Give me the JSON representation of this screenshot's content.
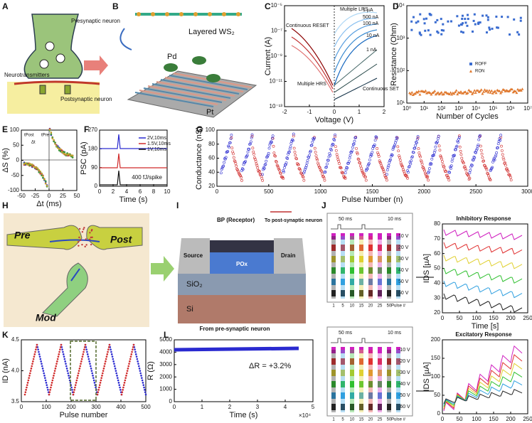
{
  "panels": {
    "A": {
      "label": "A",
      "presynaptic": "Presynaptic neuron",
      "neurotransmitters": "Neurotransmitters",
      "postsynaptic": "Postsynaptic neuron"
    },
    "B": {
      "label": "B",
      "material": "Layered WS₂",
      "top": "Pd",
      "bottom": "Pt"
    },
    "C": {
      "label": "C",
      "xlabel": "Voltage (V)",
      "ylabel": "Current (A)",
      "xticks": [
        "-2",
        "-1",
        "0",
        "1",
        "2"
      ],
      "yticks": [
        "10⁻⁵",
        "10⁻⁷",
        "10⁻⁹",
        "10⁻¹¹",
        "10⁻¹³"
      ],
      "annotations": [
        "Multiple LRS",
        "1 µA",
        "500 nA",
        "100 nA",
        "10 nA",
        "1 nA",
        "Continuous RESET",
        "Multiple HRS",
        "Continuous SET"
      ]
    },
    "D": {
      "label": "D",
      "xlabel": "Number of Cycles",
      "ylabel": "Resistance (Ohm)",
      "xticks": [
        "10⁰",
        "10¹",
        "10²",
        "10³",
        "10⁴",
        "10⁵",
        "10⁶",
        "10⁷"
      ],
      "yticks": [
        "10⁴",
        "10³",
        "10²",
        "10¹"
      ],
      "legend": [
        "ROFF",
        "RON"
      ]
    },
    "E": {
      "label": "E",
      "xlabel": "Δt (ms)",
      "ylabel": "ΔS (%)",
      "xticks": [
        "-50",
        "-25",
        "0",
        "25",
        "50"
      ],
      "yticks": [
        "100",
        "50",
        "0",
        "-50",
        "-100"
      ],
      "inset": [
        "tPost",
        "Δt",
        "tPre"
      ]
    },
    "F": {
      "label": "F",
      "xlabel": "Time (s)",
      "ylabel": "PSC (pA)",
      "xticks": [
        "0",
        "2",
        "4",
        "6",
        "8",
        "10"
      ],
      "yticks": [
        "270",
        "180",
        "90",
        "0"
      ],
      "legend": [
        "2V,10ms",
        "1.5V,10ms",
        "1V,10ms"
      ],
      "note": "400 fJ/spike"
    },
    "G": {
      "label": "G",
      "xlabel": "Pulse Number (n)",
      "ylabel": "Conductance (nS)",
      "xticks": [
        "0",
        "500",
        "1000",
        "1500",
        "2000",
        "2500",
        "3000"
      ],
      "yticks": [
        "100",
        "80",
        "60",
        "40",
        "20"
      ]
    },
    "H": {
      "label": "H",
      "pre": "Pre",
      "post": "Post",
      "mod": "Mod"
    },
    "I": {
      "label": "I",
      "receptor": "BP (Receptor)",
      "to_post": "To post-synaptic neuron",
      "source": "Source",
      "drain": "Drain",
      "pox": "POx",
      "sio2": "SiO₂",
      "si": "Si",
      "from_pre": "From pre-synaptic neuron"
    },
    "J": {
      "label": "J",
      "top_diagram": {
        "width1": "50 ms",
        "width2": "10 ms",
        "voltages": [
          "10 V",
          "20 V",
          "30 V",
          "40 V",
          "50 V",
          "60 V"
        ],
        "xticks": [
          "1",
          "5",
          "10",
          "15",
          "20",
          "25",
          "50",
          "Pulse #"
        ]
      },
      "inhibitory": {
        "title": "Inhibitory Response",
        "xlabel": "Time [s]",
        "ylabel": "IDS [µA]",
        "xticks": [
          "0",
          "50",
          "100",
          "150",
          "200",
          "250"
        ],
        "yticks": [
          "80",
          "70",
          "60",
          "50",
          "40",
          "30",
          "20"
        ]
      },
      "bottom_diagram": {
        "width1": "50 ms",
        "width2": "10 ms",
        "voltages": [
          "-10 V",
          "-20 V",
          "-30 V",
          "-40 V",
          "-50 V",
          "-60 V"
        ],
        "xticks": [
          "1",
          "5",
          "10",
          "15",
          "20",
          "25",
          "50",
          "Pulse #"
        ]
      },
      "excitatory": {
        "title": "Excitatory Response",
        "xlabel": "Time [s]",
        "ylabel": "IDS [µA]",
        "xticks": [
          "0",
          "50",
          "100",
          "150",
          "200",
          "250"
        ],
        "yticks": [
          "200",
          "150",
          "100",
          "50",
          "0"
        ]
      }
    },
    "K": {
      "label": "K",
      "xlabel": "Pulse number",
      "ylabel": "ID (nA)",
      "xticks": [
        "0",
        "100",
        "200",
        "300",
        "400",
        "500"
      ],
      "yticks": [
        "4.5",
        "4.0",
        "3.5"
      ]
    },
    "L": {
      "label": "L",
      "xlabel": "Time (s)",
      "ylabel": "R (Ω)",
      "xticks": [
        "0",
        "1",
        "2",
        "3",
        "4",
        "5"
      ],
      "yticks": [
        "5000",
        "4000",
        "3000",
        "2000",
        "1000",
        "0"
      ],
      "multiplier": "×10⁴",
      "note": "ΔR = +3.2%"
    }
  }
}
